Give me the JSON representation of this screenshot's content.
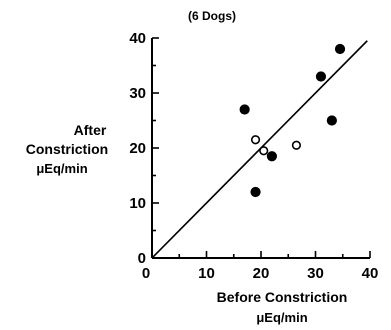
{
  "chart_data": {
    "type": "scatter",
    "title": "(6 Dogs)",
    "xlabel": [
      "Before Constriction",
      "μEq/min"
    ],
    "ylabel": [
      "After",
      "Constriction",
      "μEq/min"
    ],
    "xlim": [
      0,
      40
    ],
    "ylim": [
      0,
      40
    ],
    "x_ticks": [
      0,
      10,
      20,
      30,
      40
    ],
    "y_ticks": [
      0,
      10,
      20,
      30,
      40
    ],
    "grid": false,
    "identity_line": true,
    "series": [
      {
        "marker": "filled-circle",
        "points": [
          {
            "x": 17,
            "y": 27
          },
          {
            "x": 19,
            "y": 12
          },
          {
            "x": 22,
            "y": 18.5
          },
          {
            "x": 31,
            "y": 33
          },
          {
            "x": 33,
            "y": 25
          },
          {
            "x": 34.5,
            "y": 38
          }
        ]
      },
      {
        "marker": "open-circle",
        "points": [
          {
            "x": 19,
            "y": 21.5
          },
          {
            "x": 20.5,
            "y": 19.5
          },
          {
            "x": 26.5,
            "y": 20.5
          }
        ]
      }
    ]
  }
}
